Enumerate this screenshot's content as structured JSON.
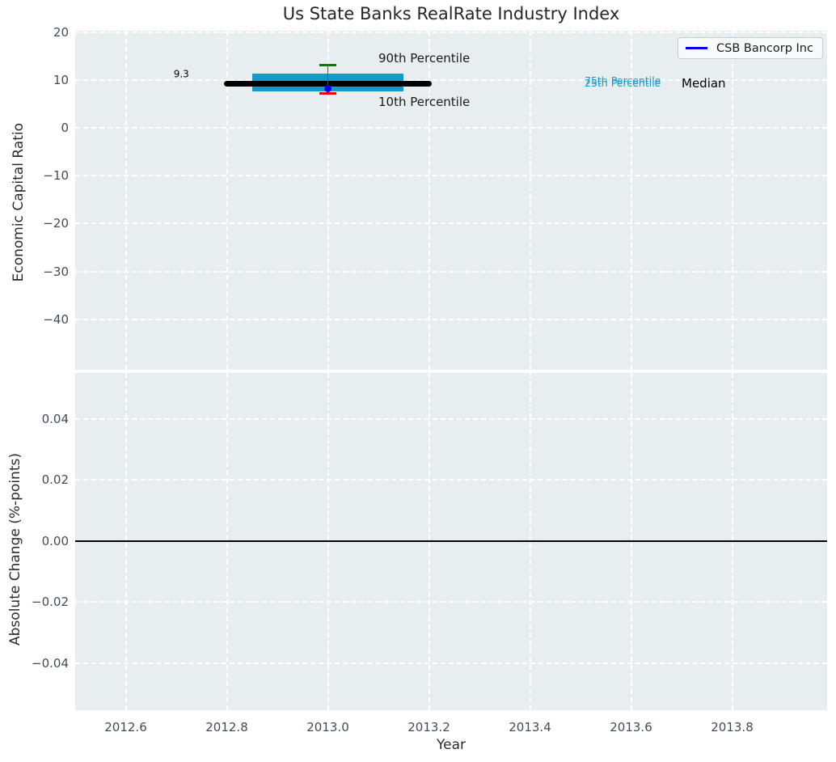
{
  "title": "Us State Banks RealRate Industry Index",
  "legend": {
    "label": "CSB Bancorp Inc",
    "line_color": "#0000ee",
    "position": "upper right"
  },
  "colors": {
    "panel_bg": "#e8eef0",
    "grid": "#ffffff",
    "tick_label": "#3f4d5e",
    "text": "#262626",
    "iqr_box": "#149bce",
    "median_line": "#000000",
    "p90_cap": "#008000",
    "p10_cap": "#ee0000",
    "company_dot": "#0000ee",
    "whisker": "#555555",
    "zero_line": "#000000"
  },
  "x_axis": {
    "label": "Year",
    "ticks": [
      2012.6,
      2012.8,
      2013.0,
      2013.2,
      2013.4,
      2013.6,
      2013.8
    ],
    "tick_labels": [
      "2012.6",
      "2012.8",
      "2013.0",
      "2013.2",
      "2013.4",
      "2013.6",
      "2013.8"
    ],
    "xlim": [
      2012.5,
      2013.988
    ]
  },
  "chart_data": [
    {
      "type": "boxplot",
      "title": "Us State Banks RealRate Industry Index",
      "ylabel": "Economic Capital Ratio",
      "xlabel": "Year",
      "xlim": [
        2012.5,
        2013.988
      ],
      "ylim": [
        -50.5,
        20.3
      ],
      "yticks": [
        20,
        10,
        0,
        -10,
        -20,
        -30,
        -40
      ],
      "ytick_labels": [
        "20",
        "10",
        "0",
        "−10",
        "−20",
        "−30",
        "−40"
      ],
      "grid": "dashed-white",
      "legend_position": "upper right",
      "box": {
        "x_center": 2013.0,
        "box_x_range": [
          2012.85,
          2013.15
        ],
        "median_x_range": [
          2012.8,
          2013.2
        ],
        "median": 9.3,
        "q1": 7.7,
        "q3": 11.3,
        "p10": 7.2,
        "p90": 13.2,
        "cap_halfwidth": 0.017
      },
      "company_point": {
        "name": "CSB Bancorp Inc",
        "x": 2013.0,
        "y": 8.3
      },
      "annotations": [
        {
          "id": "median-value",
          "text": "9.3",
          "x": 2012.71,
          "y": 11.2,
          "color": "#000000",
          "size": 12,
          "align": "center"
        },
        {
          "id": "p90-label",
          "text": "90th Percentile",
          "x": 2013.1,
          "y": 14.6,
          "color": "#1a1a1a",
          "size": 15,
          "align": "left"
        },
        {
          "id": "p10-label",
          "text": "10th Percentile",
          "x": 2013.1,
          "y": 5.5,
          "color": "#1a1a1a",
          "size": 15,
          "align": "left"
        },
        {
          "id": "p75-label",
          "text": "75th Percentile",
          "x": 2013.508,
          "y": 9.85,
          "color": "#149bce",
          "size": 12.5,
          "align": "left"
        },
        {
          "id": "p25-label",
          "text": "25th Percentile",
          "x": 2013.508,
          "y": 9.3,
          "color": "#149bce",
          "size": 12.5,
          "align": "left"
        },
        {
          "id": "median-label",
          "text": "Median",
          "x": 2013.7,
          "y": 9.25,
          "color": "#000000",
          "size": 15,
          "align": "left"
        }
      ]
    },
    {
      "type": "line",
      "ylabel": "Absolute Change (%-points)",
      "xlabel": "Year",
      "xlim": [
        2012.5,
        2013.988
      ],
      "ylim": [
        -0.0554,
        0.0551
      ],
      "yticks": [
        0.04,
        0.02,
        0.0,
        -0.02,
        -0.04
      ],
      "ytick_labels": [
        "0.04",
        "0.02",
        "0.00",
        "−0.02",
        "−0.04"
      ],
      "grid": "dashed-white",
      "zero_line_y": 0.0,
      "series": []
    }
  ]
}
